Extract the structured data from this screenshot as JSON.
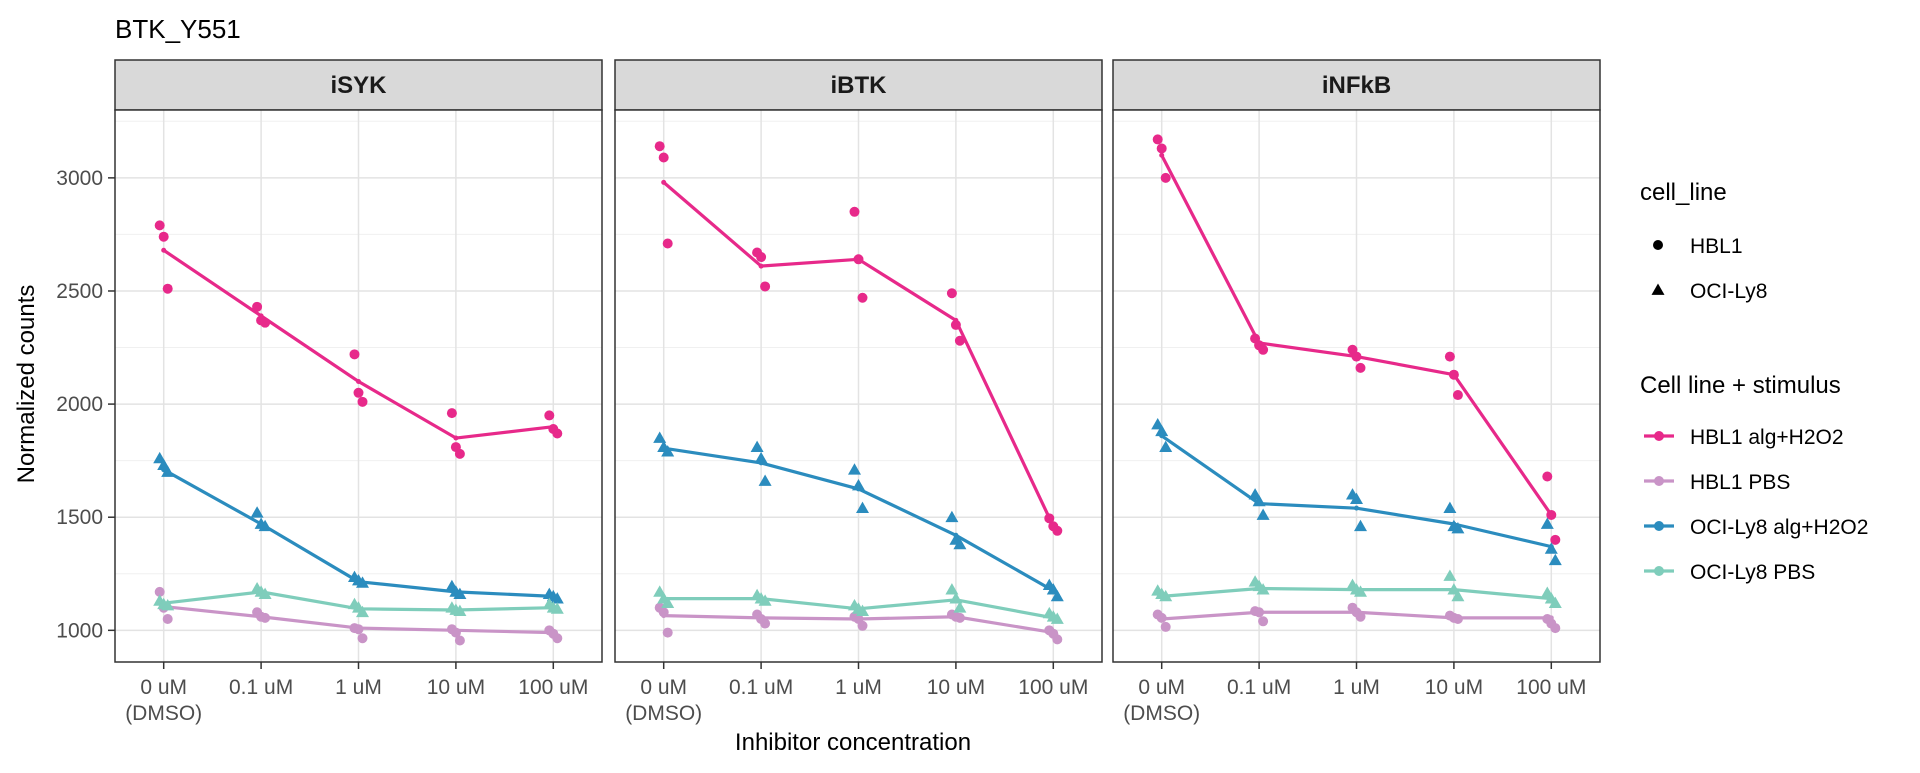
{
  "chart_data": {
    "type": "line",
    "title": "BTK_Y551",
    "xlabel": "Inhibitor concentration",
    "ylabel": "Normalized counts",
    "categories": [
      "0 uM\n(DMSO)",
      "0.1 uM",
      "1 uM",
      "10 uM",
      "100 uM"
    ],
    "ylim": [
      860,
      3300
    ],
    "yticks": [
      1000,
      1500,
      2000,
      2500,
      3000
    ],
    "grid": true,
    "legend_position": "right",
    "facets": [
      "iSYK",
      "iBTK",
      "iNFkB"
    ],
    "shape_legend": {
      "title": "cell_line",
      "entries": [
        {
          "label": "HBL1",
          "shape": "circle"
        },
        {
          "label": "OCI-Ly8",
          "shape": "triangle"
        }
      ]
    },
    "color_legend": {
      "title": "Cell line + stimulus",
      "entries": [
        {
          "label": "HBL1 alg+H2O2",
          "color": "#e7298a"
        },
        {
          "label": "HBL1 PBS",
          "color": "#c994c7"
        },
        {
          "label": "OCI-Ly8 alg+H2O2",
          "color": "#2b8cbe"
        },
        {
          "label": "OCI-Ly8 PBS",
          "color": "#7fcdbb"
        }
      ]
    },
    "panels": [
      {
        "facet": "iSYK",
        "series": [
          {
            "name": "HBL1 alg+H2O2",
            "color": "#e7298a",
            "shape": "circle",
            "line": [
              2680,
              2390,
              2100,
              1850,
              1900
            ],
            "points": [
              [
                2790,
                2740,
                2510
              ],
              [
                2430,
                2370,
                2360
              ],
              [
                2220,
                2050,
                2010
              ],
              [
                1960,
                1810,
                1780
              ],
              [
                1950,
                1890,
                1870
              ]
            ]
          },
          {
            "name": "HBL1 PBS",
            "color": "#c994c7",
            "shape": "circle",
            "line": [
              1105,
              1060,
              1010,
              1000,
              990
            ],
            "points": [
              [
                1170,
                1100,
                1050
              ],
              [
                1080,
                1060,
                1055
              ],
              [
                1010,
                1005,
                965
              ],
              [
                1005,
                990,
                955
              ],
              [
                1000,
                985,
                965
              ]
            ]
          },
          {
            "name": "OCI-Ly8 alg+H2O2",
            "color": "#2b8cbe",
            "shape": "triangle",
            "line": [
              1710,
              1470,
              1215,
              1170,
              1150
            ],
            "points": [
              [
                1760,
                1730,
                1700
              ],
              [
                1520,
                1470,
                1460
              ],
              [
                1235,
                1220,
                1210
              ],
              [
                1195,
                1170,
                1160
              ],
              [
                1160,
                1150,
                1140
              ]
            ]
          },
          {
            "name": "OCI-Ly8 PBS",
            "color": "#7fcdbb",
            "shape": "triangle",
            "line": [
              1120,
              1170,
              1095,
              1090,
              1100
            ],
            "points": [
              [
                1130,
                1115,
                1110
              ],
              [
                1185,
                1170,
                1160
              ],
              [
                1115,
                1100,
                1080
              ],
              [
                1100,
                1090,
                1085
              ],
              [
                1115,
                1100,
                1095
              ]
            ]
          }
        ]
      },
      {
        "facet": "iBTK",
        "series": [
          {
            "name": "HBL1 alg+H2O2",
            "color": "#e7298a",
            "shape": "circle",
            "line": [
              2980,
              2610,
              2640,
              2370,
              1460
            ],
            "points": [
              [
                3140,
                3090,
                2710
              ],
              [
                2670,
                2650,
                2520
              ],
              [
                2850,
                2640,
                2470
              ],
              [
                2490,
                2350,
                2280
              ],
              [
                1495,
                1460,
                1440
              ]
            ]
          },
          {
            "name": "HBL1 PBS",
            "color": "#c994c7",
            "shape": "circle",
            "line": [
              1065,
              1055,
              1050,
              1060,
              990
            ],
            "points": [
              [
                1100,
                1080,
                990
              ],
              [
                1070,
                1050,
                1030
              ],
              [
                1060,
                1050,
                1020
              ],
              [
                1070,
                1060,
                1055
              ],
              [
                1000,
                985,
                960
              ]
            ]
          },
          {
            "name": "OCI-Ly8 alg+H2O2",
            "color": "#2b8cbe",
            "shape": "triangle",
            "line": [
              1805,
              1740,
              1625,
              1420,
              1175
            ],
            "points": [
              [
                1850,
                1810,
                1790
              ],
              [
                1810,
                1760,
                1660
              ],
              [
                1710,
                1640,
                1540
              ],
              [
                1500,
                1400,
                1380
              ],
              [
                1200,
                1180,
                1150
              ]
            ]
          },
          {
            "name": "OCI-Ly8 PBS",
            "color": "#7fcdbb",
            "shape": "triangle",
            "line": [
              1140,
              1140,
              1095,
              1135,
              1055
            ],
            "points": [
              [
                1170,
                1140,
                1120
              ],
              [
                1155,
                1140,
                1130
              ],
              [
                1110,
                1095,
                1085
              ],
              [
                1180,
                1140,
                1100
              ],
              [
                1075,
                1060,
                1050
              ]
            ]
          }
        ]
      },
      {
        "facet": "iNFkB",
        "series": [
          {
            "name": "HBL1 alg+H2O2",
            "color": "#e7298a",
            "shape": "circle",
            "line": [
              3100,
              2270,
              2210,
              2130,
              1510
            ],
            "points": [
              [
                3170,
                3130,
                3000
              ],
              [
                2290,
                2260,
                2240
              ],
              [
                2240,
                2210,
                2160
              ],
              [
                2210,
                2130,
                2040
              ],
              [
                1680,
                1510,
                1400
              ]
            ]
          },
          {
            "name": "HBL1 PBS",
            "color": "#c994c7",
            "shape": "circle",
            "line": [
              1050,
              1080,
              1080,
              1055,
              1055
            ],
            "points": [
              [
                1070,
                1055,
                1015
              ],
              [
                1085,
                1080,
                1040
              ],
              [
                1100,
                1080,
                1060
              ],
              [
                1065,
                1055,
                1050
              ],
              [
                1050,
                1030,
                1010
              ]
            ]
          },
          {
            "name": "OCI-Ly8 alg+H2O2",
            "color": "#2b8cbe",
            "shape": "triangle",
            "line": [
              1860,
              1560,
              1540,
              1470,
              1370
            ],
            "points": [
              [
                1910,
                1880,
                1810
              ],
              [
                1600,
                1570,
                1510
              ],
              [
                1600,
                1580,
                1460
              ],
              [
                1540,
                1460,
                1450
              ],
              [
                1470,
                1360,
                1310
              ]
            ]
          },
          {
            "name": "OCI-Ly8 PBS",
            "color": "#7fcdbb",
            "shape": "triangle",
            "line": [
              1150,
              1185,
              1180,
              1180,
              1140
            ],
            "points": [
              [
                1175,
                1160,
                1150
              ],
              [
                1215,
                1195,
                1180
              ],
              [
                1200,
                1180,
                1170
              ],
              [
                1240,
                1180,
                1150
              ],
              [
                1165,
                1140,
                1120
              ]
            ]
          }
        ]
      }
    ]
  }
}
